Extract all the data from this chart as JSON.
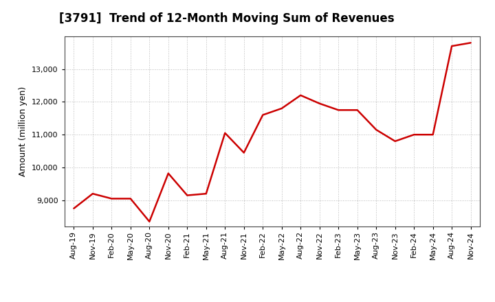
{
  "title": "[3791]  Trend of 12-Month Moving Sum of Revenues",
  "ylabel": "Amount (million yen)",
  "line_color": "#cc0000",
  "background_color": "#ffffff",
  "plot_bg_color": "#ffffff",
  "grid_color": "#999999",
  "title_fontsize": 12,
  "label_fontsize": 9,
  "tick_fontsize": 8,
  "x_labels": [
    "Aug-19",
    "Nov-19",
    "Feb-20",
    "May-20",
    "Aug-20",
    "Nov-20",
    "Feb-21",
    "May-21",
    "Aug-21",
    "Nov-21",
    "Feb-22",
    "May-22",
    "Aug-22",
    "Nov-22",
    "Feb-23",
    "May-23",
    "Aug-23",
    "Nov-23",
    "Feb-24",
    "May-24",
    "Aug-24",
    "Nov-24"
  ],
  "values": [
    8750,
    9200,
    9050,
    9050,
    8350,
    9820,
    9150,
    9200,
    11050,
    10450,
    11600,
    11800,
    12200,
    11950,
    11750,
    11750,
    11150,
    10800,
    11000,
    11000,
    13700,
    13800
  ],
  "ylim": [
    8200,
    14000
  ],
  "yticks": [
    9000,
    10000,
    11000,
    12000,
    13000
  ],
  "ytick_labels": [
    "9,000",
    "10,000",
    "11,000",
    "12,000",
    "13,000"
  ]
}
